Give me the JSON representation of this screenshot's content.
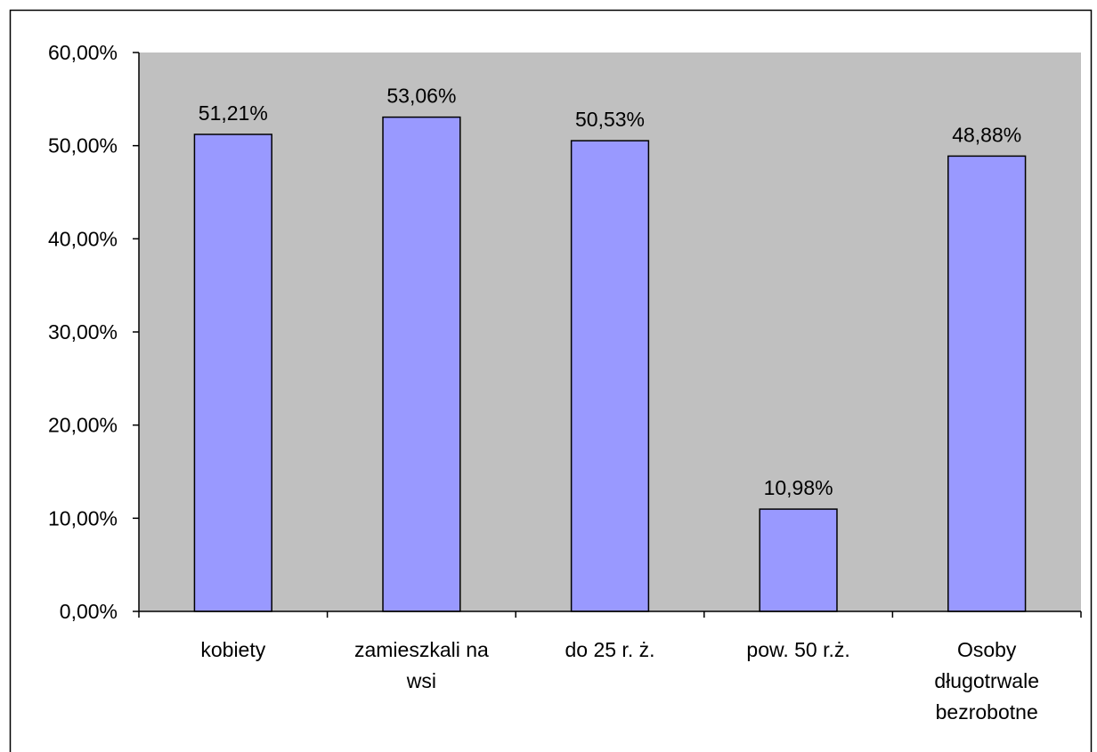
{
  "chart_data": {
    "type": "bar",
    "categories": [
      [
        "kobiety"
      ],
      [
        "zamieszkali na",
        "wsi"
      ],
      [
        "do 25 r. ż."
      ],
      [
        "pow. 50 r.ż."
      ],
      [
        "Osoby",
        "długotrwale",
        "bezrobotne"
      ]
    ],
    "values": [
      51.21,
      53.06,
      50.53,
      10.98,
      48.88
    ],
    "data_labels": [
      "51,21%",
      "53,06%",
      "50,53%",
      "10,98%",
      "48,88%"
    ],
    "ylim": [
      0,
      60
    ],
    "y_ticks": [
      0,
      10,
      20,
      30,
      40,
      50,
      60
    ],
    "y_tick_labels": [
      "0,00%",
      "10,00%",
      "20,00%",
      "30,00%",
      "40,00%",
      "50,00%",
      "60,00%"
    ],
    "title": "",
    "xlabel": "",
    "ylabel": "",
    "grid": false,
    "legend": "none",
    "colors": {
      "plot_background": "#c0c0c0",
      "bar_fill": "#9999ff",
      "bar_stroke": "#000000",
      "axis": "#000000"
    }
  }
}
